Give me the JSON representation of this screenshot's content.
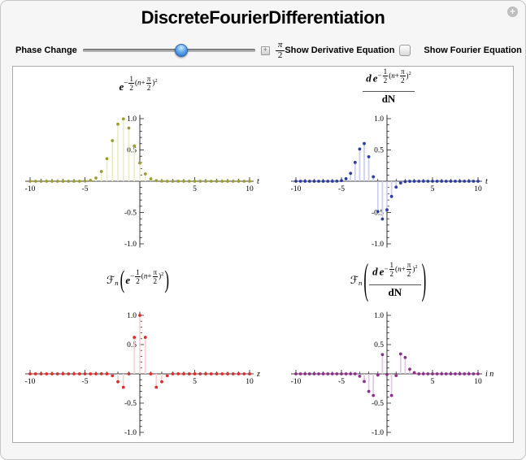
{
  "header": {
    "title": "DiscreteFourierDifferentiation"
  },
  "window": {
    "info_glyph": "+"
  },
  "controls": {
    "phase": {
      "label": "Phase Change",
      "slider_percent": 57,
      "expand_glyph": "+",
      "value_num": "π",
      "value_den": "2"
    },
    "checkboxes": [
      {
        "label": "Show Derivative Equation",
        "checked": false
      },
      {
        "label": "Show Fourier Equation",
        "checked": false
      }
    ]
  },
  "chart_data": [
    {
      "id": "gaussian",
      "type": "stem",
      "title_text": "e^(-1/2 (n+pi/2)^2)",
      "x_axis_label": "t",
      "point_color": "#9d9d2e",
      "stem_color": "#ececc9",
      "x_start": -10,
      "x_step": 0.5,
      "xlim": [
        -10,
        10
      ],
      "ylim": [
        -1,
        1
      ],
      "x_major_ticks": [
        -10,
        -5,
        5,
        10
      ],
      "x_major_labels": [
        "-10",
        "-5",
        "5",
        "10"
      ],
      "x_minor_step": 1,
      "y_major_ticks": [
        1,
        0.5,
        -0.5,
        -1
      ],
      "y_major_labels": [
        "1.0",
        "0.5",
        "-0.5",
        "-1.0"
      ],
      "y_minor_step": 0.1,
      "values": [
        0,
        0,
        0,
        0,
        0,
        0,
        0,
        0,
        0,
        0,
        0.003,
        0.014,
        0.052,
        0.156,
        0.36,
        0.649,
        0.912,
        0.997,
        0.85,
        0.564,
        0.291,
        0.117,
        0.037,
        0.009,
        0.002,
        0,
        0,
        0,
        0,
        0,
        0,
        0,
        0,
        0,
        0,
        0,
        0,
        0,
        0,
        0,
        0
      ],
      "title_tokens": [
        {
          "k": "bvar",
          "v": "e"
        },
        {
          "k": "sup",
          "v": [
            {
              "k": "txt",
              "v": "−"
            },
            {
              "k": "frac",
              "n": "1",
              "d": "2"
            },
            {
              "k": "txt",
              "v": "("
            },
            {
              "k": "var",
              "v": "n"
            },
            {
              "k": "txt",
              "v": "+"
            },
            {
              "k": "frac",
              "n": "π",
              "d": "2"
            },
            {
              "k": "txt",
              "v": ")"
            },
            {
              "k": "sup",
              "v": [
                {
                  "k": "txt",
                  "v": "2"
                }
              ]
            }
          ]
        }
      ]
    },
    {
      "id": "derivative",
      "type": "stem",
      "title_text": "d e^(-1/2 (n+pi/2)^2) / dN",
      "x_axis_label": "t",
      "point_color": "#2b3ba5",
      "stem_color": "#c9d0ee",
      "x_start": -10,
      "x_step": 0.5,
      "xlim": [
        -10,
        10
      ],
      "ylim": [
        -1,
        1
      ],
      "x_major_ticks": [
        -10,
        -5,
        5,
        10
      ],
      "x_major_labels": [
        "-10",
        "-5",
        "5",
        "10"
      ],
      "x_minor_step": 1,
      "y_major_ticks": [
        1,
        0.5,
        -0.5,
        -1
      ],
      "y_major_labels": [
        "1.0",
        "0.5",
        "-0.5",
        "-1.0"
      ],
      "y_minor_step": 0.1,
      "values": [
        0,
        0,
        0,
        0,
        0,
        0,
        0,
        0,
        0,
        0.002,
        0.01,
        0.04,
        0.126,
        0.301,
        0.515,
        0.603,
        0.391,
        0.071,
        -0.485,
        -0.604,
        -0.457,
        -0.243,
        -0.094,
        -0.028,
        -0.006,
        -0.001,
        0,
        0,
        0,
        0,
        0,
        0,
        0,
        0,
        0,
        0,
        0,
        0,
        0,
        0,
        0
      ],
      "title_tokens": [
        {
          "k": "mfrac",
          "n": [
            {
              "k": "bvar",
              "v": "d"
            },
            {
              "k": "sp"
            },
            {
              "k": "bvar",
              "v": "e"
            },
            {
              "k": "sup",
              "v": [
                {
                  "k": "txt",
                  "v": "−"
                },
                {
                  "k": "frac",
                  "n": "1",
                  "d": "2"
                },
                {
                  "k": "txt",
                  "v": "("
                },
                {
                  "k": "var",
                  "v": "n"
                },
                {
                  "k": "txt",
                  "v": "+"
                },
                {
                  "k": "frac",
                  "n": "π",
                  "d": "2"
                },
                {
                  "k": "txt",
                  "v": ")"
                },
                {
                  "k": "sup",
                  "v": [
                    {
                      "k": "txt",
                      "v": "2"
                    }
                  ]
                }
              ]
            }
          ],
          "d": [
            {
              "k": "b",
              "v": "dN"
            }
          ]
        }
      ]
    },
    {
      "id": "fourier-of-gaussian",
      "type": "stem",
      "title_text": "F_n( e^(-1/2 (n+pi/2)^2) )",
      "x_axis_label": "z",
      "point_color": "#e22929",
      "stem_color": "#fad0d0",
      "x_start": -10,
      "x_step": 0.5,
      "xlim": [
        -10,
        10
      ],
      "ylim": [
        -1,
        1
      ],
      "x_major_ticks": [
        -10,
        -5,
        5,
        10
      ],
      "x_major_labels": [
        "-10",
        "-5",
        "5",
        "10"
      ],
      "x_minor_step": 1,
      "y_major_ticks": [
        1,
        0.5,
        -0.5,
        -1
      ],
      "y_major_labels": [
        "1.0",
        "0.5",
        "-0.5",
        "-1.0"
      ],
      "y_minor_step": 0.1,
      "values": [
        0,
        0,
        0,
        0,
        0,
        0,
        0,
        0,
        0,
        0,
        0,
        0,
        0,
        0.002,
        0,
        -0.031,
        -0.135,
        -0.23,
        0,
        0.624,
        1.0,
        0.624,
        0,
        -0.23,
        -0.135,
        -0.031,
        0,
        0.002,
        0,
        0,
        0,
        0,
        0,
        0,
        0,
        0,
        0,
        0,
        0,
        0,
        0
      ],
      "title_tokens": [
        {
          "k": "sf",
          "v": "ℱ"
        },
        {
          "k": "sub",
          "v": "n"
        },
        {
          "k": "paren",
          "size": 1,
          "v": [
            {
              "k": "bvar",
              "v": "e"
            },
            {
              "k": "sup",
              "v": [
                {
                  "k": "txt",
                  "v": "−"
                },
                {
                  "k": "frac",
                  "n": "1",
                  "d": "2"
                },
                {
                  "k": "txt",
                  "v": "("
                },
                {
                  "k": "var",
                  "v": "n"
                },
                {
                  "k": "txt",
                  "v": "+"
                },
                {
                  "k": "frac",
                  "n": "π",
                  "d": "2"
                },
                {
                  "k": "txt",
                  "v": ")"
                },
                {
                  "k": "sup",
                  "v": [
                    {
                      "k": "txt",
                      "v": "2"
                    }
                  ]
                }
              ]
            }
          ]
        }
      ]
    },
    {
      "id": "fourier-of-derivative",
      "type": "stem",
      "title_text": "F_n( d e^(-1/2 (n+pi/2)^2) / dN )",
      "x_axis_label": "i n",
      "point_color": "#8f2d8f",
      "stem_color": "#e4c6e8",
      "x_start": -10,
      "x_step": 0.5,
      "xlim": [
        -10,
        10
      ],
      "ylim": [
        -1,
        1
      ],
      "x_major_ticks": [
        -10,
        -5,
        5,
        10
      ],
      "x_major_labels": [
        "-10",
        "-5",
        "5",
        "10"
      ],
      "x_minor_step": 1,
      "y_major_ticks": [
        1,
        0.5,
        -0.5,
        -1
      ],
      "y_major_labels": [
        "1.0",
        "0.5",
        "-0.5",
        "-1.0"
      ],
      "y_minor_step": 0.1,
      "values": [
        0,
        0,
        0,
        0,
        0,
        0,
        0,
        0,
        0,
        0,
        0,
        0,
        0,
        0,
        -0.04,
        -0.13,
        -0.3,
        -0.37,
        -0.02,
        0.33,
        -0.01,
        -0.37,
        -0.03,
        0.34,
        0.28,
        0.08,
        0.02,
        0,
        0,
        0,
        0,
        0,
        0,
        0,
        0,
        0,
        0,
        0,
        0,
        0,
        0
      ],
      "title_tokens": [
        {
          "k": "sf",
          "v": "ℱ"
        },
        {
          "k": "sub",
          "v": "n"
        },
        {
          "k": "paren",
          "size": 2,
          "v": [
            {
              "k": "mfrac",
              "n": [
                {
                  "k": "bvar",
                  "v": "d"
                },
                {
                  "k": "sp"
                },
                {
                  "k": "bvar",
                  "v": "e"
                },
                {
                  "k": "sup",
                  "v": [
                    {
                      "k": "txt",
                      "v": "−"
                    },
                    {
                      "k": "frac",
                      "n": "1",
                      "d": "2"
                    },
                    {
                      "k": "txt",
                      "v": "("
                    },
                    {
                      "k": "var",
                      "v": "n"
                    },
                    {
                      "k": "txt",
                      "v": "+"
                    },
                    {
                      "k": "frac",
                      "n": "π",
                      "d": "2"
                    },
                    {
                      "k": "txt",
                      "v": ")"
                    },
                    {
                      "k": "sup",
                      "v": [
                        {
                          "k": "txt",
                          "v": "2"
                        }
                      ]
                    }
                  ]
                }
              ],
              "d": [
                {
                  "k": "b",
                  "v": "dN"
                }
              ]
            }
          ]
        }
      ]
    }
  ]
}
